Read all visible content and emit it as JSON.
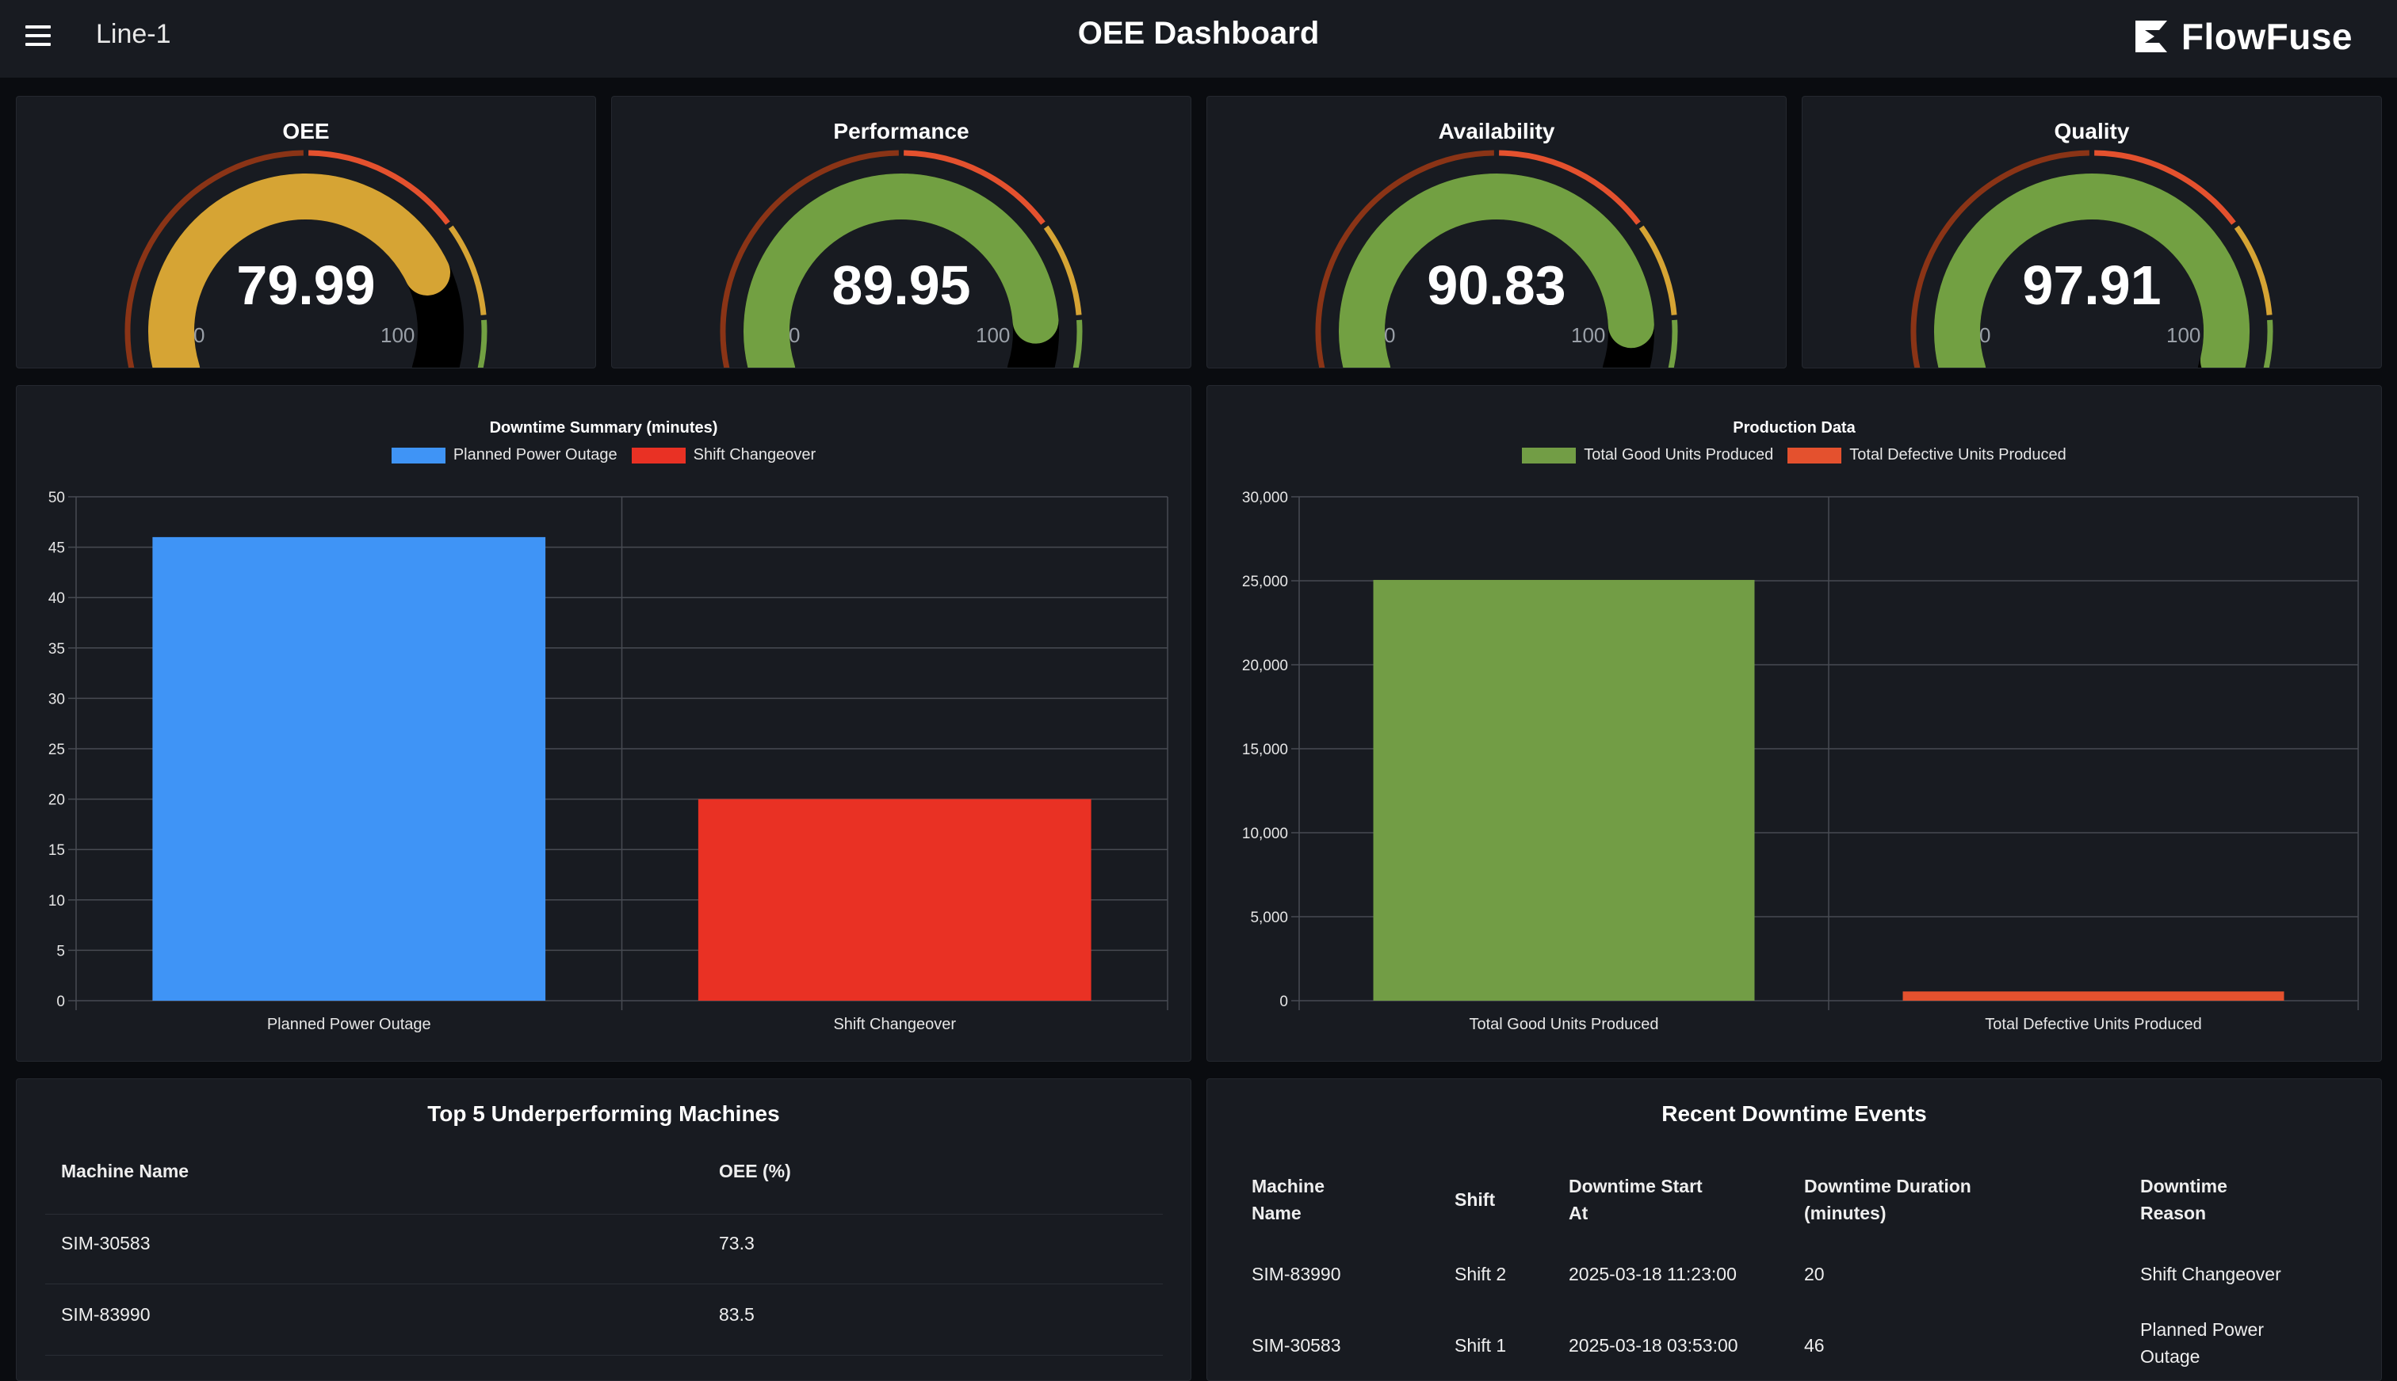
{
  "header": {
    "line_label": "Line-1",
    "title": "OEE Dashboard",
    "brand": "FlowFuse"
  },
  "gauges": [
    {
      "label": "OEE",
      "value": "79.99",
      "min": "0",
      "max": "100",
      "fill_color": "#d6a434"
    },
    {
      "label": "Performance",
      "value": "89.95",
      "min": "0",
      "max": "100",
      "fill_color": "#72a042"
    },
    {
      "label": "Availability",
      "value": "90.83",
      "min": "0",
      "max": "100",
      "fill_color": "#72a042"
    },
    {
      "label": "Quality",
      "value": "97.91",
      "min": "0",
      "max": "100",
      "fill_color": "#72a042"
    }
  ],
  "gauge_zone_colors": [
    "#8a3416",
    "#e4512e",
    "#d6a434",
    "#72a042"
  ],
  "chart_data": [
    {
      "type": "bar",
      "title": "Downtime Summary (minutes)",
      "categories": [
        "Planned Power Outage",
        "Shift Changeover"
      ],
      "series": [
        {
          "name": "Planned Power Outage",
          "color": "#3f94f6",
          "values": [
            46,
            0
          ]
        },
        {
          "name": "Shift Changeover",
          "color": "#e93124",
          "values": [
            0,
            20
          ]
        }
      ],
      "ylim": [
        0,
        50
      ],
      "yticks": [
        "0",
        "5",
        "10",
        "15",
        "20",
        "25",
        "30",
        "35",
        "40",
        "45",
        "50"
      ],
      "grid": true,
      "legend": "top"
    },
    {
      "type": "bar",
      "title": "Production Data",
      "categories": [
        "Total Good Units Produced",
        "Total Defective Units Produced"
      ],
      "series": [
        {
          "name": "Total Good Units Produced",
          "color": "#729d45",
          "values": [
            25050,
            0
          ]
        },
        {
          "name": "Total Defective Units Produced",
          "color": "#e4512e",
          "values": [
            0,
            550
          ]
        }
      ],
      "ylim": [
        0,
        30000
      ],
      "yticks": [
        "0",
        "5,000",
        "10,000",
        "15,000",
        "20,000",
        "25,000",
        "30,000"
      ],
      "grid": true,
      "legend": "top"
    }
  ],
  "machines_table": {
    "title": "Top 5 Underperforming Machines",
    "headers": [
      "Machine Name",
      "OEE (%)"
    ],
    "rows": [
      [
        "SIM-30583",
        "73.3"
      ],
      [
        "SIM-83990",
        "83.5"
      ]
    ]
  },
  "events_table": {
    "title": "Recent Downtime Events",
    "headers": [
      [
        "Machine",
        "Name"
      ],
      [
        "Shift"
      ],
      [
        "Downtime Start",
        "At"
      ],
      [
        "Downtime Duration",
        "(minutes)"
      ],
      [
        "Downtime",
        "Reason"
      ]
    ],
    "rows": [
      {
        "machine": "SIM-83990",
        "shift": "Shift 2",
        "start": "2025-03-18 11:23:00",
        "duration": "20",
        "reason": [
          "Shift Changeover"
        ]
      },
      {
        "machine": "SIM-30583",
        "shift": "Shift 1",
        "start": "2025-03-18 03:53:00",
        "duration": "46",
        "reason": [
          "Planned Power",
          "Outage"
        ]
      }
    ]
  }
}
